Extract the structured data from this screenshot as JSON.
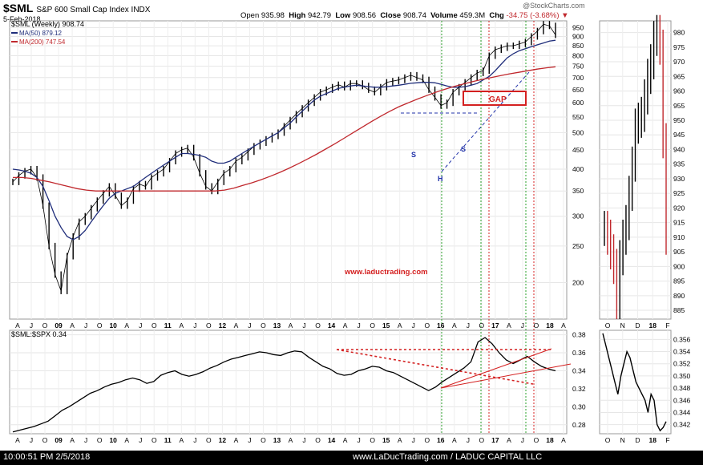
{
  "header": {
    "symbol": "$SML",
    "description": "S&P 600 Small Cap Index  INDX",
    "date": "5-Feb-2018",
    "open_label": "Open",
    "open": "935.98",
    "high_label": "High",
    "high": "942.79",
    "low_label": "Low",
    "low": "908.56",
    "close_label": "Close",
    "close": "908.74",
    "volume_label": "Volume",
    "volume": "459.3M",
    "chg_label": "Chg",
    "chg": "-34.75 (-3.68%)",
    "credit": "@StockCharts.com"
  },
  "legend": {
    "main": "$SML (Weekly) 908.74",
    "ma50": "MA(50) 879.12",
    "ma200": "MA(200) 747.54"
  },
  "annotations": {
    "gap": "GAP",
    "s_left": "S",
    "head": "H",
    "s_right": "S",
    "watermark": "www.laductrading.com"
  },
  "ratio": {
    "label": "$SML:$SPX 0.34"
  },
  "footer": {
    "timestamp": "10:00:51 PM 2/5/2018",
    "source": "www.LaDucTrading.com / LADUC CAPITAL LLC"
  },
  "colors": {
    "price": "#000000",
    "ma50": "#1f2d7a",
    "ma200": "#c0282d",
    "gap_box": "#d42020",
    "annotation_blue": "#2233aa",
    "vline_green": "#2aa02a",
    "vline_red": "#d42020",
    "watermark": "#d42020"
  },
  "chart_data": [
    {
      "type": "line",
      "title": "$SML S&P 600 Small Cap Index (Weekly)",
      "x_labels": [
        "A",
        "J",
        "O",
        "09",
        "A",
        "J",
        "O",
        "10",
        "A",
        "J",
        "O",
        "11",
        "A",
        "J",
        "O",
        "12",
        "A",
        "J",
        "O",
        "13",
        "A",
        "J",
        "O",
        "14",
        "A",
        "J",
        "O",
        "15",
        "A",
        "J",
        "O",
        "16",
        "A",
        "J",
        "O",
        "17",
        "A",
        "J",
        "O",
        "18",
        "A"
      ],
      "y_ticks": [
        200,
        250,
        300,
        350,
        400,
        450,
        500,
        550,
        600,
        650,
        700,
        750,
        800,
        850,
        900,
        950
      ],
      "ylim": [
        160,
        990
      ],
      "scale": "log",
      "series": [
        {
          "name": "$SML (Weekly)",
          "color_key": "price",
          "values": [
            370,
            385,
            395,
            400,
            380,
            320,
            250,
            210,
            190,
            235,
            265,
            290,
            300,
            315,
            330,
            345,
            360,
            340,
            320,
            330,
            355,
            365,
            360,
            380,
            390,
            400,
            420,
            440,
            450,
            455,
            430,
            390,
            360,
            350,
            370,
            390,
            400,
            420,
            430,
            445,
            460,
            470,
            480,
            490,
            500,
            520,
            540,
            560,
            580,
            600,
            620,
            640,
            650,
            660,
            670,
            660,
            675,
            675,
            665,
            650,
            640,
            660,
            680,
            685,
            690,
            700,
            710,
            700,
            690,
            650,
            620,
            590,
            600,
            640,
            660,
            680,
            700,
            720,
            730,
            800,
            830,
            840,
            850,
            850,
            860,
            870,
            900,
            930,
            970,
            960,
            908.74
          ]
        },
        {
          "name": "MA(50)",
          "color_key": "ma50",
          "values": [
            400,
            398,
            395,
            390,
            380,
            360,
            330,
            300,
            280,
            265,
            260,
            265,
            275,
            290,
            305,
            320,
            335,
            345,
            350,
            355,
            360,
            370,
            380,
            390,
            400,
            410,
            420,
            430,
            440,
            440,
            438,
            435,
            430,
            420,
            415,
            415,
            420,
            430,
            440,
            450,
            460,
            470,
            480,
            490,
            500,
            515,
            530,
            550,
            570,
            590,
            610,
            625,
            635,
            645,
            655,
            660,
            665,
            668,
            665,
            662,
            660,
            660,
            662,
            665,
            668,
            672,
            676,
            678,
            680,
            680,
            678,
            672,
            665,
            660,
            660,
            662,
            668,
            675,
            690,
            705,
            730,
            760,
            790,
            810,
            825,
            835,
            845,
            855,
            865,
            875,
            879.12
          ]
        },
        {
          "name": "MA(200)",
          "color_key": "ma200",
          "values": [
            380,
            380,
            378,
            374,
            370,
            365,
            360,
            355,
            352,
            350,
            350,
            350,
            350,
            350,
            350,
            350,
            350,
            350,
            350,
            350,
            350,
            350,
            350,
            352,
            356,
            362,
            368,
            375,
            383,
            392,
            402,
            413,
            425,
            438,
            452,
            467,
            483,
            500,
            517,
            535,
            553,
            570,
            586,
            600,
            614,
            627,
            640,
            652,
            663,
            673,
            683,
            692,
            700,
            708,
            716,
            723,
            730,
            737,
            743,
            747.54
          ]
        }
      ]
    },
    {
      "type": "line",
      "title": "$SML:$SPX 0.34",
      "x_labels": [
        "A",
        "J",
        "O",
        "09",
        "A",
        "J",
        "O",
        "10",
        "A",
        "J",
        "O",
        "11",
        "A",
        "J",
        "O",
        "12",
        "A",
        "J",
        "O",
        "13",
        "A",
        "J",
        "O",
        "14",
        "A",
        "J",
        "O",
        "15",
        "A",
        "J",
        "O",
        "16",
        "A",
        "J",
        "O",
        "17",
        "A",
        "J",
        "O",
        "18",
        "A"
      ],
      "y_ticks": [
        0.28,
        0.3,
        0.32,
        0.34,
        0.36,
        0.38
      ],
      "ylim": [
        0.27,
        0.385
      ],
      "series": [
        {
          "name": "$SML:$SPX",
          "color_key": "price",
          "values": [
            0.272,
            0.274,
            0.276,
            0.278,
            0.281,
            0.284,
            0.29,
            0.296,
            0.3,
            0.305,
            0.31,
            0.315,
            0.318,
            0.322,
            0.325,
            0.327,
            0.33,
            0.332,
            0.33,
            0.326,
            0.328,
            0.335,
            0.338,
            0.34,
            0.336,
            0.334,
            0.336,
            0.339,
            0.343,
            0.346,
            0.35,
            0.353,
            0.355,
            0.357,
            0.359,
            0.361,
            0.36,
            0.358,
            0.357,
            0.36,
            0.362,
            0.361,
            0.355,
            0.35,
            0.345,
            0.342,
            0.337,
            0.335,
            0.336,
            0.34,
            0.342,
            0.345,
            0.344,
            0.34,
            0.338,
            0.334,
            0.33,
            0.326,
            0.322,
            0.318,
            0.322,
            0.328,
            0.333,
            0.338,
            0.343,
            0.35,
            0.372,
            0.377,
            0.37,
            0.36,
            0.352,
            0.348,
            0.352,
            0.356,
            0.35,
            0.345,
            0.342,
            0.34
          ]
        }
      ]
    },
    {
      "type": "bar",
      "title": "$SML daily inset",
      "x_labels": [
        "O",
        "N",
        "D",
        "18",
        "F"
      ],
      "y_ticks": [
        885,
        890,
        895,
        900,
        905,
        910,
        915,
        920,
        925,
        930,
        935,
        940,
        945,
        950,
        955,
        960,
        965,
        970,
        975,
        980
      ],
      "ylim": [
        882,
        984
      ],
      "values": [
        913,
        910,
        905,
        900,
        888,
        903,
        910,
        915,
        925,
        935,
        948,
        950,
        952,
        958,
        965,
        970,
        978,
        980,
        975,
        943,
        910
      ]
    },
    {
      "type": "line",
      "title": "$SML:$SPX daily inset",
      "x_labels": [
        "O",
        "N",
        "D",
        "18",
        "F"
      ],
      "y_ticks": [
        0.342,
        0.344,
        0.346,
        0.348,
        0.35,
        0.352,
        0.354,
        0.356
      ],
      "ylim": [
        0.3405,
        0.3575
      ],
      "series": [
        {
          "name": "$SML:$SPX daily",
          "color_key": "price",
          "values": [
            0.357,
            0.355,
            0.353,
            0.351,
            0.349,
            0.347,
            0.35,
            0.352,
            0.354,
            0.353,
            0.351,
            0.349,
            0.348,
            0.347,
            0.346,
            0.344,
            0.347,
            0.346,
            0.342,
            0.341,
            0.3415,
            0.3425
          ]
        }
      ]
    }
  ]
}
